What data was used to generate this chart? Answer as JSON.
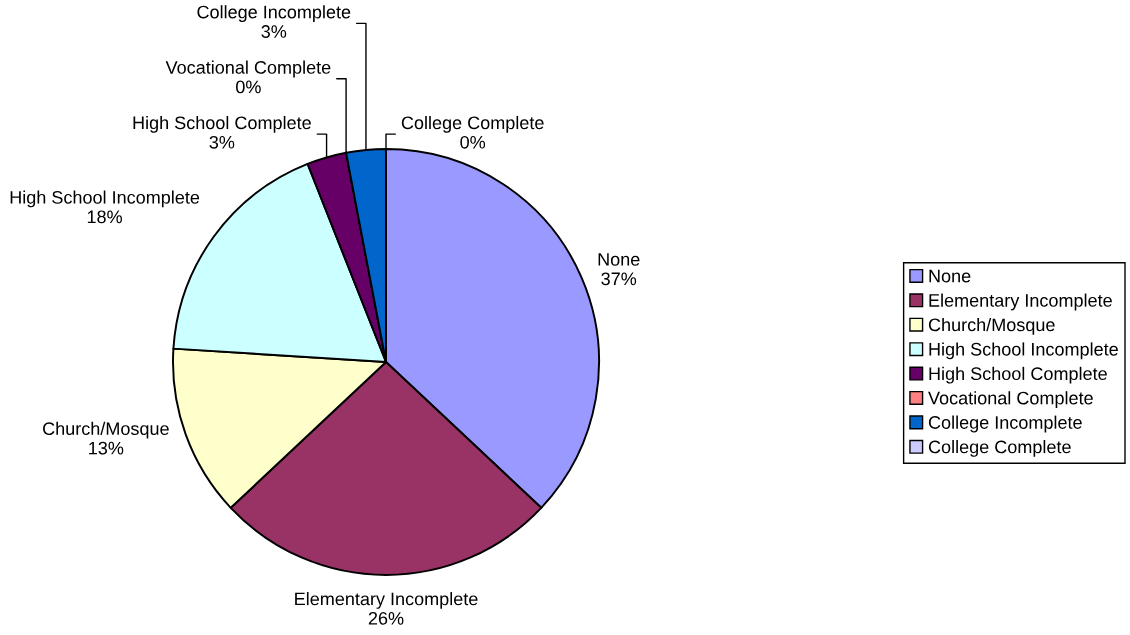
{
  "chart_data": {
    "type": "pie",
    "categories": [
      "None",
      "Elementary Incomplete",
      "Church/Mosque",
      "High School Incomplete",
      "High School Complete",
      "Vocational Complete",
      "College Incomplete",
      "College Complete"
    ],
    "values": [
      37,
      26,
      13,
      18,
      3,
      0,
      3,
      0
    ],
    "colors": [
      "#9999ff",
      "#993366",
      "#ffffcc",
      "#ccffff",
      "#660066",
      "#ff8080",
      "#0066cc",
      "#ccccff"
    ],
    "value_labels": [
      "37%",
      "26%",
      "13%",
      "18%",
      "3%",
      "0%",
      "3%",
      "0%"
    ],
    "legend": "right"
  }
}
